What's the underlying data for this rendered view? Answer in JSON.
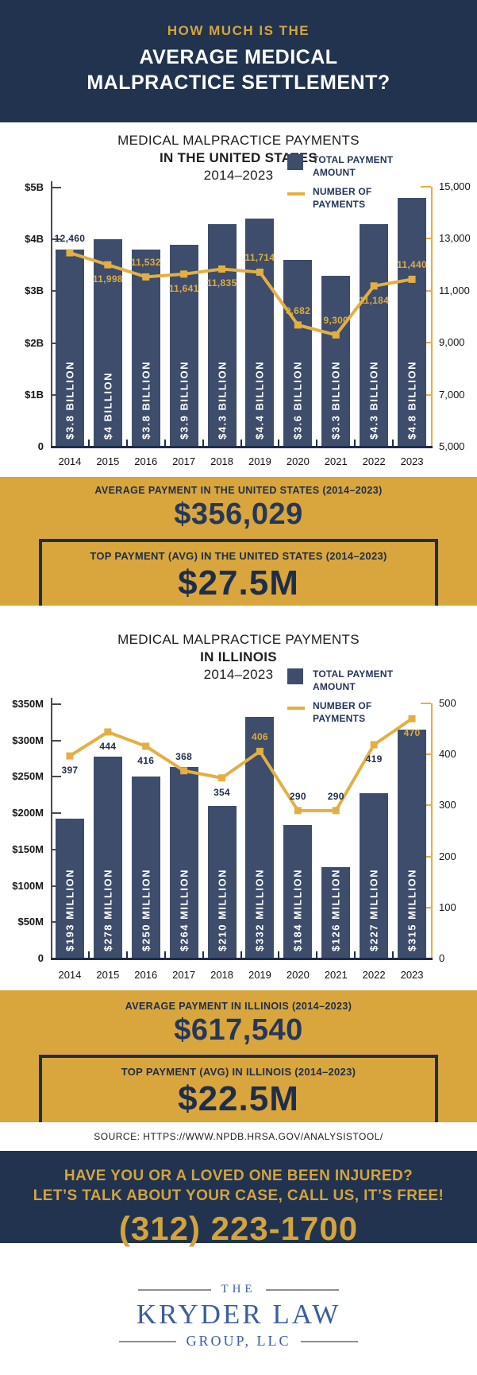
{
  "colors": {
    "navy_background": "#21334e",
    "bar_navy": "#3d4d6b",
    "gold_band": "#d8a63c",
    "gold_line": "#e3af43",
    "navy_text": "#1e2d4a",
    "logo_blue": "#3b5e9e"
  },
  "header": {
    "eyebrow": "HOW MUCH IS THE",
    "title_line1": "AVERAGE MEDICAL",
    "title_line2": "MALPRACTICE SETTLEMENT?"
  },
  "chart_data": [
    {
      "type": "bar+line",
      "title_line1": "MEDICAL MALPRACTICE PAYMENTS",
      "title_line2": "IN THE UNITED STATES",
      "subtitle": "2014–2023",
      "legend": {
        "bar_label": "TOTAL PAYMENT AMOUNT",
        "line_label": "NUMBER OF PAYMENTS"
      },
      "categories": [
        "2014",
        "2015",
        "2016",
        "2017",
        "2018",
        "2019",
        "2020",
        "2021",
        "2022",
        "2023"
      ],
      "bar_series": {
        "name": "TOTAL PAYMENT AMOUNT",
        "unit": "billions USD",
        "values": [
          3.8,
          4,
          3.8,
          3.9,
          4.3,
          4.4,
          3.6,
          3.3,
          4.3,
          4.8
        ],
        "bar_labels": [
          "$3.8 BILLION",
          "$4 BILLION",
          "$3.8 BILLION",
          "$3.9 BILLION",
          "$4.3 BILLION",
          "$4.4 BILLION",
          "$3.6 BILLION",
          "$3.3 BILLION",
          "$4.3 BILLION",
          "$4.8 BILLION"
        ]
      },
      "line_series": {
        "name": "NUMBER OF PAYMENTS",
        "values": [
          12460,
          11998,
          11532,
          11641,
          11835,
          11714,
          9682,
          9300,
          11184,
          11440
        ],
        "labels": [
          "12,460",
          "11,998",
          "11,532",
          "11,641",
          "11,835",
          "11,714",
          "9,682",
          "9,300",
          "11,184",
          "11,440"
        ],
        "label_pos": [
          "above",
          "below",
          "above",
          "below",
          "below",
          "above",
          "above",
          "above",
          "below",
          "above"
        ],
        "label_color": [
          "navy",
          "gold",
          "gold",
          "gold",
          "gold",
          "gold",
          "gold",
          "gold",
          "gold",
          "gold"
        ]
      },
      "y_left_ticks": [
        "$5B",
        "$4B",
        "$3B",
        "$2B",
        "$1B",
        "0"
      ],
      "y_left_range": [
        0,
        5
      ],
      "y_right_ticks": [
        "15,000",
        "13,000",
        "11,000",
        "9,000",
        "7,000",
        "5,000"
      ],
      "y_right_range": [
        5000,
        15000
      ],
      "legend_position": "top-right",
      "grid": "off"
    },
    {
      "type": "bar+line",
      "title_line1": "MEDICAL MALPRACTICE PAYMENTS",
      "title_line2": "IN ILLINOIS",
      "subtitle": "2014–2023",
      "legend": {
        "bar_label": "TOTAL PAYMENT AMOUNT",
        "line_label": "NUMBER OF PAYMENTS"
      },
      "categories": [
        "2014",
        "2015",
        "2016",
        "2017",
        "2018",
        "2019",
        "2020",
        "2021",
        "2022",
        "2023"
      ],
      "bar_series": {
        "name": "TOTAL PAYMENT AMOUNT",
        "unit": "millions USD",
        "values": [
          193,
          278,
          250,
          264,
          210,
          332,
          184,
          126,
          227,
          315
        ],
        "bar_labels": [
          "$193 MILLION",
          "$278 MILLION",
          "$250 MILLION",
          "$264 MILLION",
          "$210 MILLION",
          "$332 MILLION",
          "$184 MILLION",
          "$126 MILLION",
          "$227 MILLION",
          "$315 MILLION"
        ]
      },
      "line_series": {
        "name": "NUMBER OF PAYMENTS",
        "values": [
          397,
          444,
          416,
          368,
          354,
          406,
          290,
          290,
          419,
          470
        ],
        "labels": [
          "397",
          "444",
          "416",
          "368",
          "354",
          "406",
          "290",
          "290",
          "419",
          "470"
        ],
        "label_pos": [
          "below",
          "below",
          "below",
          "above",
          "below",
          "above",
          "above",
          "above",
          "below",
          "below"
        ],
        "label_color": [
          "navy",
          "navy",
          "navy",
          "navy",
          "navy",
          "gold",
          "navy",
          "navy",
          "navy",
          "gold"
        ]
      },
      "y_left_ticks": [
        "$350M",
        "$300M",
        "$250M",
        "$200M",
        "$150M",
        "$100M",
        "$50M",
        "0"
      ],
      "y_left_range": [
        0,
        350
      ],
      "y_right_ticks": [
        "500",
        "400",
        "300",
        "200",
        "100",
        "0"
      ],
      "y_right_range": [
        0,
        500
      ],
      "legend_position": "top-right",
      "grid": "off"
    }
  ],
  "stats": {
    "us": {
      "avg_label": "AVERAGE PAYMENT IN THE UNITED STATES (2014–2023)",
      "avg_value": "$356,029",
      "top_label": "TOP PAYMENT (AVG) IN THE UNITED STATES (2014–2023)",
      "top_value": "$27.5M"
    },
    "il": {
      "avg_label": "AVERAGE PAYMENT IN ILLINOIS (2014–2023)",
      "avg_value": "$617,540",
      "top_label": "TOP PAYMENT (AVG) IN ILLINOIS (2014–2023)",
      "top_value": "$22.5M"
    }
  },
  "source": "SOURCE: HTTPS://WWW.NPDB.HRSA.GOV/ANALYSISTOOL/",
  "cta": {
    "line1": "HAVE YOU OR A LOVED ONE BEEN INJURED?",
    "line2": "LET’S TALK ABOUT YOUR CASE, CALL US, IT’S FREE!",
    "phone": "(312) 223-1700"
  },
  "logo": {
    "top": "THE",
    "name": "KRYDER LAW",
    "bottom": "GROUP, LLC"
  }
}
